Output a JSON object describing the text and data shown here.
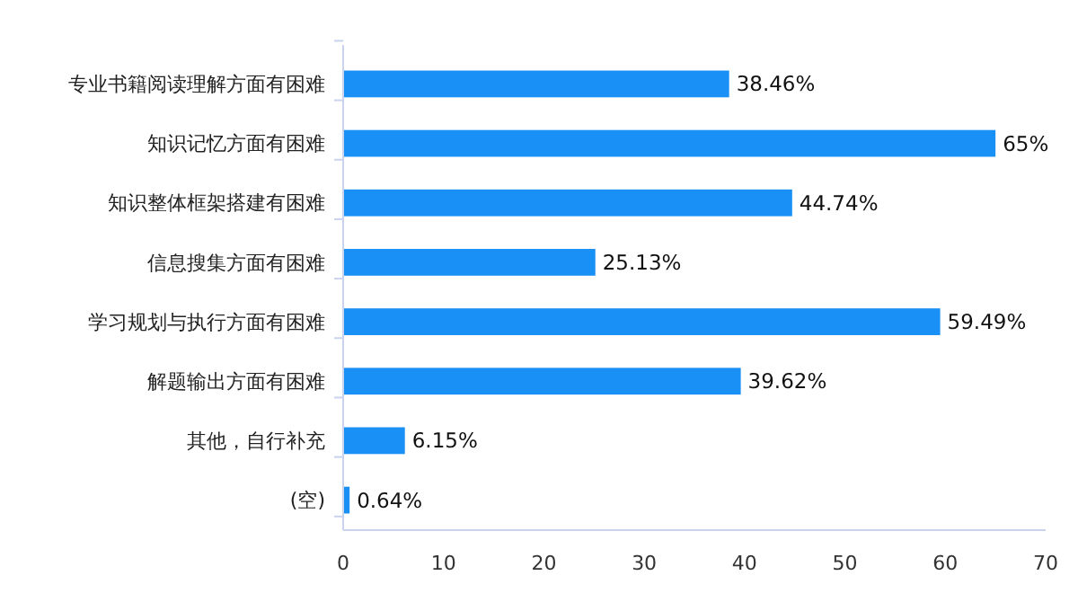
{
  "chart_data": {
    "type": "bar",
    "orientation": "horizontal",
    "categories": [
      "专业书籍阅读理解方面有困难",
      "知识记忆方面有困难",
      "知识整体框架搭建有困难",
      "信息搜集方面有困难",
      "学习规划与执行方面有困难",
      "解题输出方面有困难",
      "其他，自行补充",
      "(空)"
    ],
    "values": [
      38.46,
      65,
      44.74,
      25.13,
      59.49,
      39.62,
      6.15,
      0.64
    ],
    "value_labels": [
      "38.46%",
      "65%",
      "44.74%",
      "25.13%",
      "59.49%",
      "39.62%",
      "6.15%",
      "0.64%"
    ],
    "color": "#1990f5",
    "xlim": [
      0,
      70
    ],
    "xticks": [
      0,
      10,
      20,
      30,
      40,
      50,
      60,
      70
    ]
  }
}
